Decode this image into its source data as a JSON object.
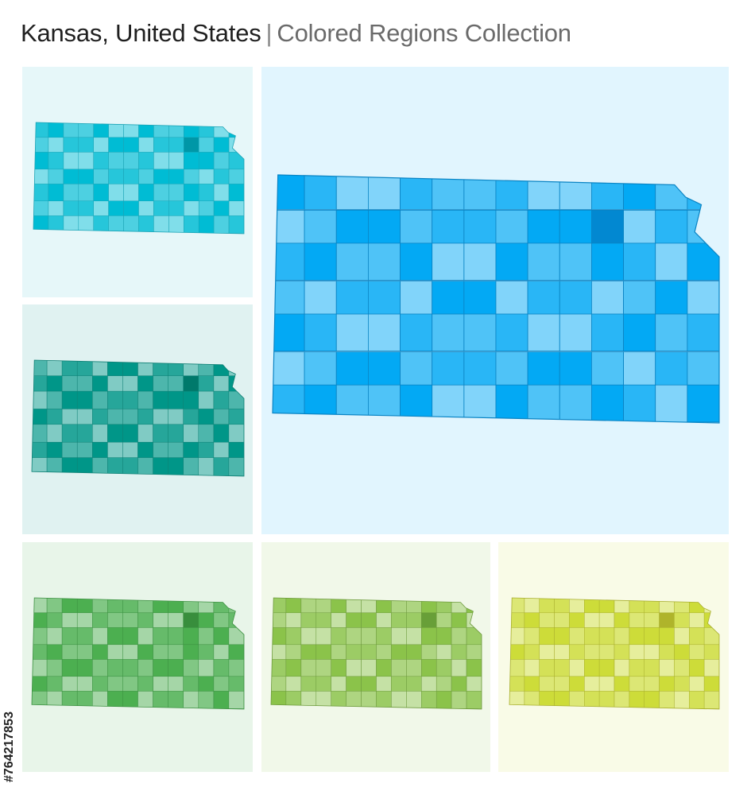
{
  "header": {
    "title": "Kansas, United States",
    "separator": "|",
    "subtitle": "Colored Regions Collection"
  },
  "credit": {
    "id_text": "#764217853"
  },
  "map": {
    "region": "Kansas",
    "grid_columns": 14,
    "grid_rows": 7,
    "highlight_cell": {
      "col": 10,
      "row": 1
    }
  },
  "panels": [
    {
      "name": "panel-cyan",
      "background": "#e6f7f9",
      "palette": [
        "#26c6da",
        "#4dd0e1",
        "#00bcd4",
        "#80deea"
      ],
      "dark": "#0097a7",
      "stroke": "#19a3b5"
    },
    {
      "name": "panel-teal",
      "background": "#e0f2f1",
      "palette": [
        "#26a69a",
        "#4db6ac",
        "#009688",
        "#80cbc4"
      ],
      "dark": "#00796b",
      "stroke": "#0f8075"
    },
    {
      "name": "panel-blue-large",
      "background": "#e1f5fe",
      "palette": [
        "#29b6f6",
        "#4fc3f7",
        "#03a9f4",
        "#81d4fa"
      ],
      "dark": "#0288d1",
      "stroke": "#0a84c4"
    },
    {
      "name": "panel-green",
      "background": "#e8f5e9",
      "palette": [
        "#66bb6a",
        "#81c784",
        "#4caf50",
        "#a5d6a7"
      ],
      "dark": "#388e3c",
      "stroke": "#3b8f40"
    },
    {
      "name": "panel-light-green",
      "background": "#f1f8e9",
      "palette": [
        "#9ccc65",
        "#aed581",
        "#8bc34a",
        "#c5e1a5"
      ],
      "dark": "#689f38",
      "stroke": "#6d9a3c"
    },
    {
      "name": "panel-lime",
      "background": "#f9fbe7",
      "palette": [
        "#d4e157",
        "#dce775",
        "#cddc39",
        "#e6ee9c"
      ],
      "dark": "#afb42b",
      "stroke": "#a8ae2e"
    }
  ]
}
